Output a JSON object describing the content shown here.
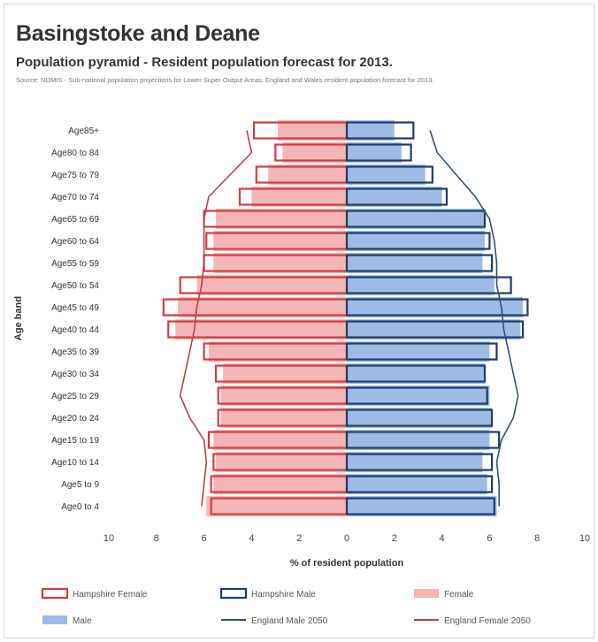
{
  "header": {
    "title": "Basingstoke and Deane",
    "subtitle": "Population pyramid - Resident population forecast for 2013.",
    "source": "Source: NOMIS - Sub-national population projections for Lower Super Output Areas; England and Wales resident population forecast for 2013."
  },
  "chart_data": {
    "type": "bar",
    "orientation": "horizontal",
    "pyramid": true,
    "xlabel": "% of resident population",
    "ylabel": "Age band",
    "xlim": [
      -10,
      10
    ],
    "x_ticks": [
      "10",
      "8",
      "6",
      "4",
      "2",
      "0",
      "2",
      "4",
      "6",
      "8",
      "10"
    ],
    "categories": [
      "Age0 to 4",
      "Age5 to 9",
      "Age10 to 14",
      "Age15 to 19",
      "Age20 to 24",
      "Age25 to 29",
      "Age30 to 34",
      "Age35 to 39",
      "Age40 to 44",
      "Age45 to 49",
      "Age50 to 54",
      "Age55 to 59",
      "Age60 to 64",
      "Age65 to 69",
      "Age70 to 74",
      "Age75 to 79",
      "Age80 to 84",
      "Age85+"
    ],
    "series": [
      {
        "name": "Female",
        "side": "left",
        "style": "filled",
        "color": "#f4b6b4",
        "values": [
          5.9,
          5.6,
          5.5,
          5.6,
          5.3,
          5.3,
          5.2,
          5.8,
          7.2,
          7.1,
          6.3,
          5.6,
          5.6,
          5.5,
          4.0,
          3.3,
          2.7,
          2.9
        ]
      },
      {
        "name": "Male",
        "side": "right",
        "style": "filled",
        "color": "#9dbbe5",
        "values": [
          6.3,
          5.9,
          5.7,
          6.0,
          6.1,
          6.0,
          5.8,
          6.0,
          7.3,
          7.4,
          6.2,
          5.7,
          5.8,
          5.8,
          4.0,
          3.3,
          2.3,
          2.0
        ]
      },
      {
        "name": "Hampshire Female",
        "side": "left",
        "style": "outline",
        "color": "#d03c44",
        "values": [
          5.7,
          5.7,
          5.6,
          5.8,
          5.4,
          5.4,
          5.5,
          6.0,
          7.5,
          7.7,
          7.0,
          6.0,
          5.9,
          6.0,
          4.5,
          3.8,
          3.0,
          3.9
        ]
      },
      {
        "name": "Hampshire Male",
        "side": "right",
        "style": "outline",
        "color": "#1e3d6b",
        "values": [
          6.2,
          6.1,
          6.1,
          6.4,
          6.1,
          5.9,
          5.8,
          6.3,
          7.4,
          7.6,
          6.9,
          6.1,
          6.0,
          5.8,
          4.2,
          3.6,
          2.7,
          2.8
        ]
      },
      {
        "name": "England Male 2050",
        "side": "right",
        "style": "line",
        "color": "#2f4f7a",
        "values": [
          6.4,
          6.4,
          6.3,
          6.5,
          7.0,
          7.2,
          7.0,
          6.8,
          6.6,
          6.5,
          6.3,
          6.3,
          6.2,
          6.0,
          5.4,
          4.6,
          3.8,
          3.5
        ]
      },
      {
        "name": "England Female 2050",
        "side": "left",
        "style": "line",
        "color": "#b5434a",
        "values": [
          6.1,
          6.0,
          5.9,
          6.0,
          6.6,
          7.0,
          6.8,
          6.6,
          6.4,
          6.3,
          6.1,
          6.0,
          6.0,
          6.0,
          5.8,
          4.9,
          4.0,
          4.2
        ]
      }
    ],
    "legend": {
      "placement": "bottom",
      "items": [
        {
          "label": "Hampshire Female",
          "style": "outline",
          "color": "#d03c44"
        },
        {
          "label": "Hampshire Male",
          "style": "outline",
          "color": "#1e3d6b"
        },
        {
          "label": "Female",
          "style": "filled",
          "color": "#f4b6b4"
        },
        {
          "label": "Male",
          "style": "filled",
          "color": "#9dbbe5"
        },
        {
          "label": "England Male 2050",
          "style": "line",
          "color": "#2f4f7a"
        },
        {
          "label": "England Female 2050",
          "style": "line",
          "color": "#b5434a"
        }
      ]
    },
    "grid": false
  }
}
